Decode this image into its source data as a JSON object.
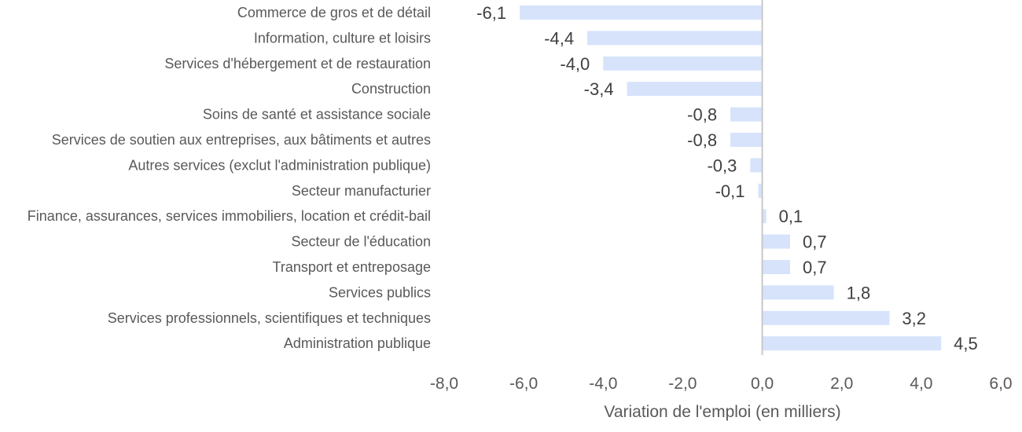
{
  "chart_data": {
    "type": "bar",
    "orientation": "horizontal",
    "categories": [
      "Commerce de gros et de détail",
      "Information, culture et loisirs",
      "Services d'hébergement et de restauration",
      "Construction",
      "Soins de santé et assistance sociale",
      "Services de soutien aux entreprises, aux bâtiments et autres",
      "Autres services (exclut l'administration publique)",
      "Secteur manufacturier",
      "Finance, assurances, services immobiliers, location et crédit-bail",
      "Secteur de l'éducation",
      "Transport et entreposage",
      "Services publics",
      "Services professionnels, scientifiques et techniques",
      "Administration publique"
    ],
    "values": [
      -6.1,
      -4.4,
      -4.0,
      -3.4,
      -0.8,
      -0.8,
      -0.3,
      -0.1,
      0.1,
      0.7,
      0.7,
      1.8,
      3.2,
      4.5
    ],
    "value_labels": [
      "-6,1",
      "-4,4",
      "-4,0",
      "-3,4",
      "-0,8",
      "-0,8",
      "-0,3",
      "-0,1",
      "0,1",
      "0,7",
      "0,7",
      "1,8",
      "3,2",
      "4,5"
    ],
    "xlabel": "Variation de l'emploi (en milliers)",
    "ylabel": "",
    "xlim": [
      -8,
      6
    ],
    "ticks": [
      -8,
      -6,
      -4,
      -2,
      0,
      2,
      4,
      6
    ],
    "tick_labels": [
      "-8,0",
      "-6,0",
      "-4,0",
      "-2,0",
      "0,0",
      "2,0",
      "4,0",
      "6,0"
    ],
    "bar_color": "#d6e3fb",
    "zero_line_color": "#c8c8c8",
    "grid": false,
    "legend": "none"
  }
}
